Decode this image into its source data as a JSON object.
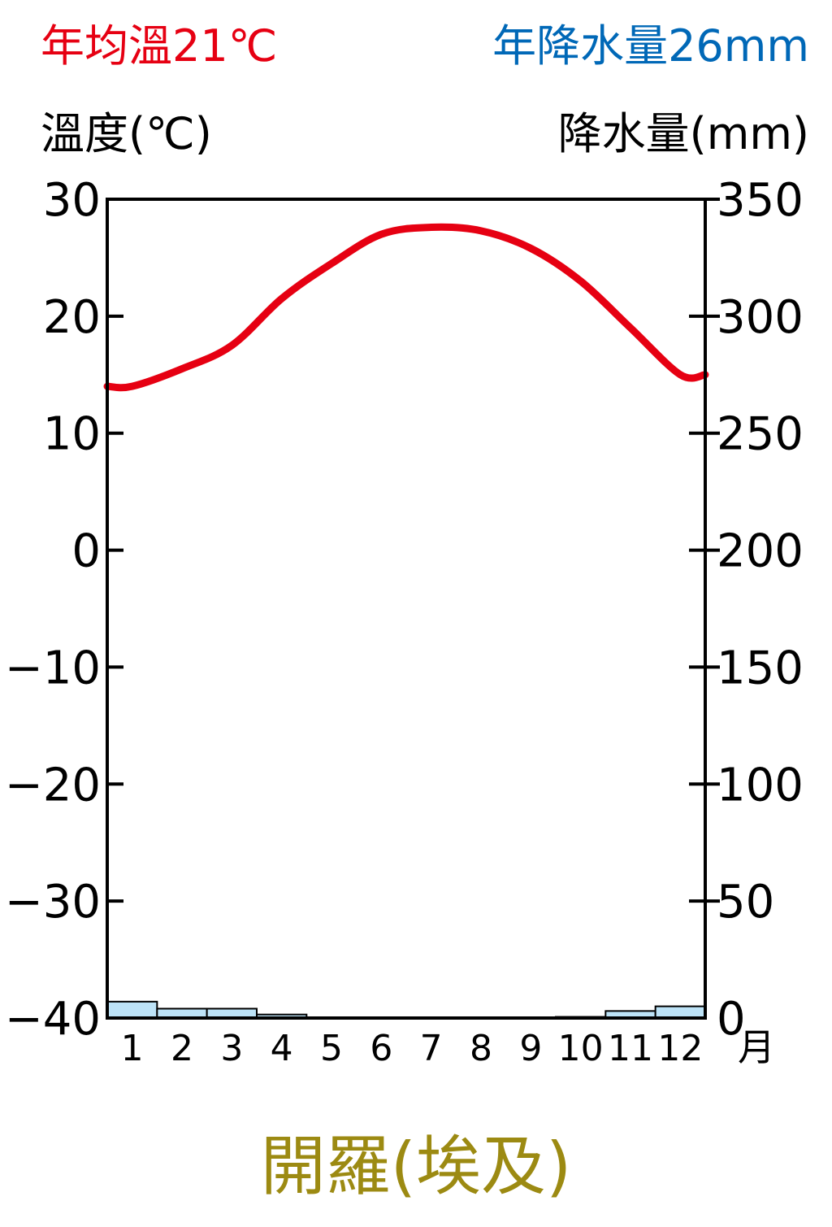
{
  "header": {
    "annual_temp": "年均溫21℃",
    "annual_precip": "年降水量26mm"
  },
  "title": "開羅(埃及)",
  "colors": {
    "temperature_line": "#e60012",
    "precip_bar": "#bde3f7",
    "annual_temp_text": "#e60012",
    "annual_precip_text": "#0068b7",
    "title_text": "#9c8a12"
  },
  "chart_data": {
    "type": "bar+line",
    "categories": [
      "1",
      "2",
      "3",
      "4",
      "5",
      "6",
      "7",
      "8",
      "9",
      "10",
      "11",
      "12"
    ],
    "x_unit": "月",
    "y_left": {
      "label": "溫度(℃)",
      "range": [
        -40,
        30
      ],
      "ticks": [
        "30",
        "20",
        "10",
        "0",
        "−10",
        "−20",
        "−30",
        "−40"
      ],
      "tick_values": [
        30,
        20,
        10,
        0,
        -10,
        -20,
        -30,
        -40
      ]
    },
    "y_right": {
      "label": "降水量(mm)",
      "range": [
        0,
        350
      ],
      "ticks": [
        "350",
        "300",
        "250",
        "200",
        "150",
        "100",
        "50",
        "0"
      ],
      "tick_values": [
        350,
        300,
        250,
        200,
        150,
        100,
        50,
        0
      ]
    },
    "series": [
      {
        "kind": "bar",
        "axis": "right",
        "values": [
          7,
          4,
          4,
          1.5,
          0,
          0,
          0,
          0,
          0,
          0.5,
          3,
          5
        ]
      },
      {
        "kind": "line",
        "axis": "left",
        "values": [
          14.0,
          15.5,
          17.5,
          21.5,
          24.5,
          27.0,
          27.6,
          27.3,
          25.8,
          23.0,
          19.0,
          15.0
        ]
      }
    ],
    "grid": false
  }
}
